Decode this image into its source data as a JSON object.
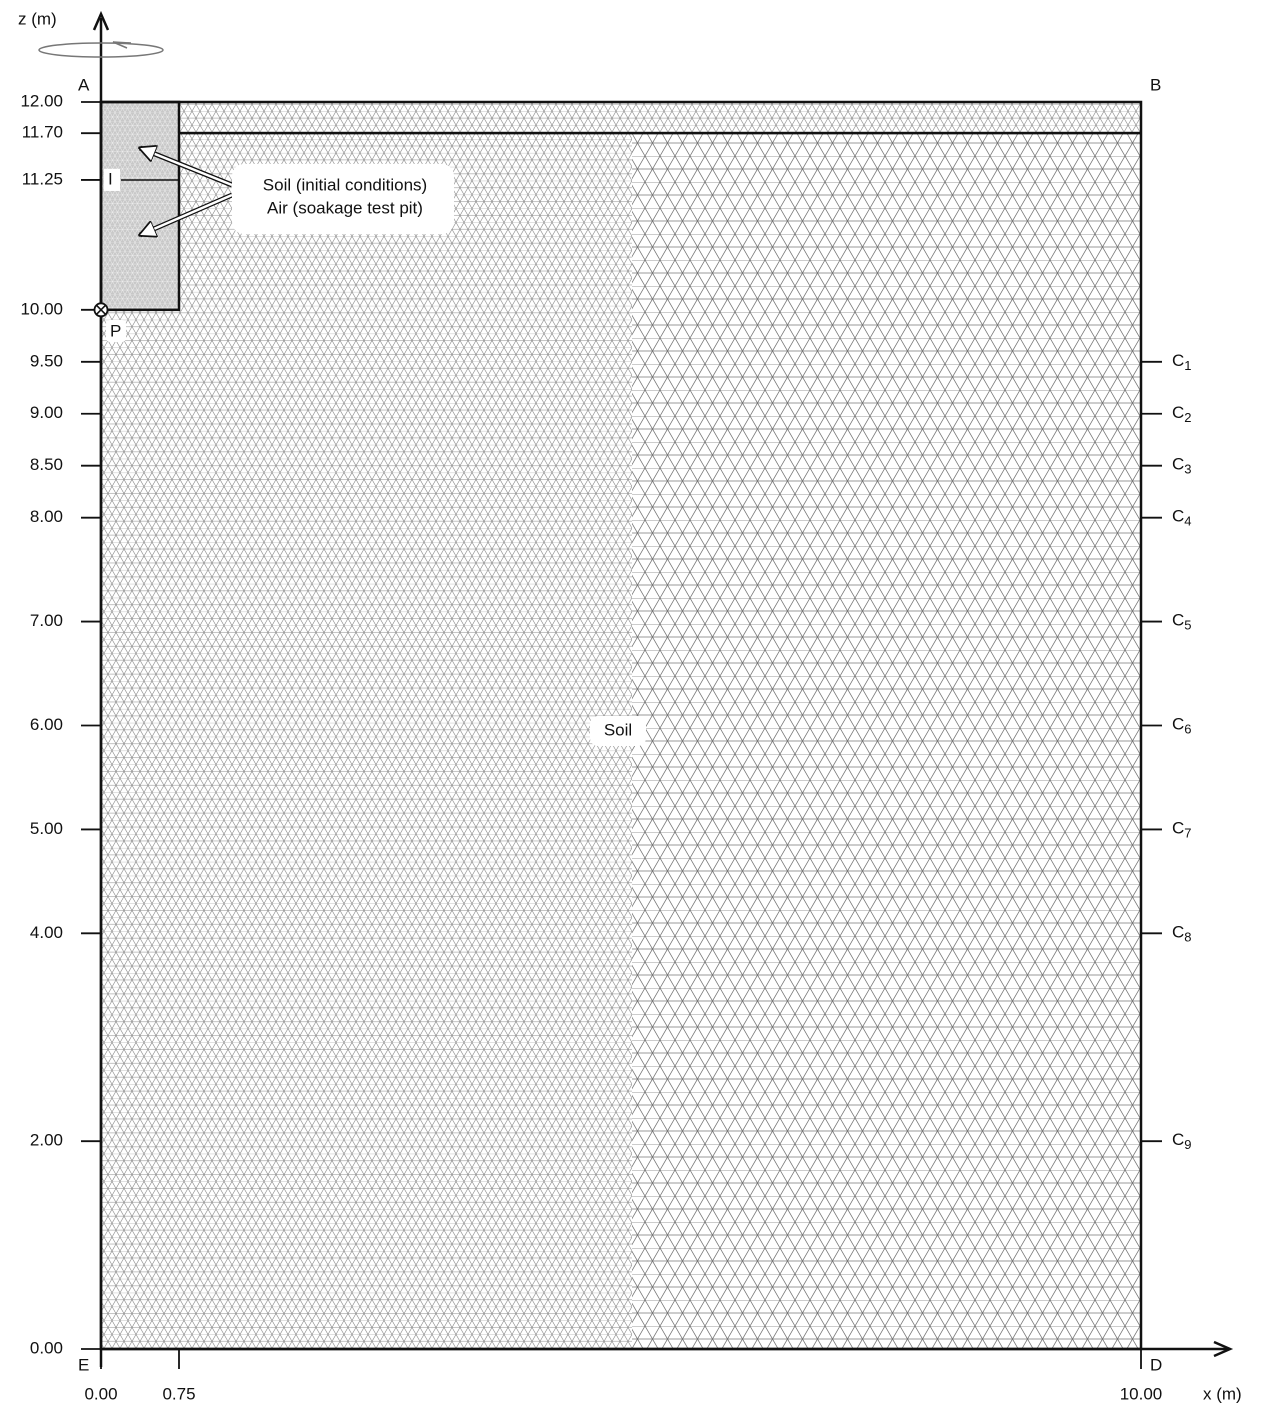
{
  "axes": {
    "z_label": "z (m)",
    "x_label": "x (m)",
    "zlim": [
      0,
      12
    ],
    "xlim": [
      0,
      10
    ],
    "zticks": [
      {
        "value": 12,
        "label": "12.00"
      },
      {
        "value": 11.7,
        "label": "11.70"
      },
      {
        "value": 11.25,
        "label": "11.25"
      },
      {
        "value": 10,
        "label": "10.00"
      },
      {
        "value": 9.5,
        "label": "9.50"
      },
      {
        "value": 9,
        "label": "9.00"
      },
      {
        "value": 8.5,
        "label": "8.50"
      },
      {
        "value": 8,
        "label": "8.00"
      },
      {
        "value": 7,
        "label": "7.00"
      },
      {
        "value": 6,
        "label": "6.00"
      },
      {
        "value": 5,
        "label": "5.00"
      },
      {
        "value": 4,
        "label": "4.00"
      },
      {
        "value": 2,
        "label": "2.00"
      },
      {
        "value": 0,
        "label": "0.00"
      }
    ],
    "xticks": [
      {
        "value": 0,
        "label": "0.00"
      },
      {
        "value": 0.75,
        "label": "0.75"
      },
      {
        "value": 10,
        "label": "10.00"
      }
    ]
  },
  "corners": {
    "A": "A",
    "B": "B",
    "D": "D",
    "E": "E",
    "P": "P",
    "I": "I"
  },
  "annotation": {
    "line1": "Soil (initial conditions)",
    "line2": "Air (soakage test pit)"
  },
  "region_label": "Soil",
  "monitors": [
    {
      "name": "C",
      "index": "1",
      "z": 9.5
    },
    {
      "name": "C",
      "index": "2",
      "z": 9
    },
    {
      "name": "C",
      "index": "3",
      "z": 8.5
    },
    {
      "name": "C",
      "index": "4",
      "z": 8
    },
    {
      "name": "C",
      "index": "5",
      "z": 7
    },
    {
      "name": "C",
      "index": "6",
      "z": 6
    },
    {
      "name": "C",
      "index": "7",
      "z": 5
    },
    {
      "name": "C",
      "index": "8",
      "z": 4
    },
    {
      "name": "C",
      "index": "9",
      "z": 2
    }
  ]
}
